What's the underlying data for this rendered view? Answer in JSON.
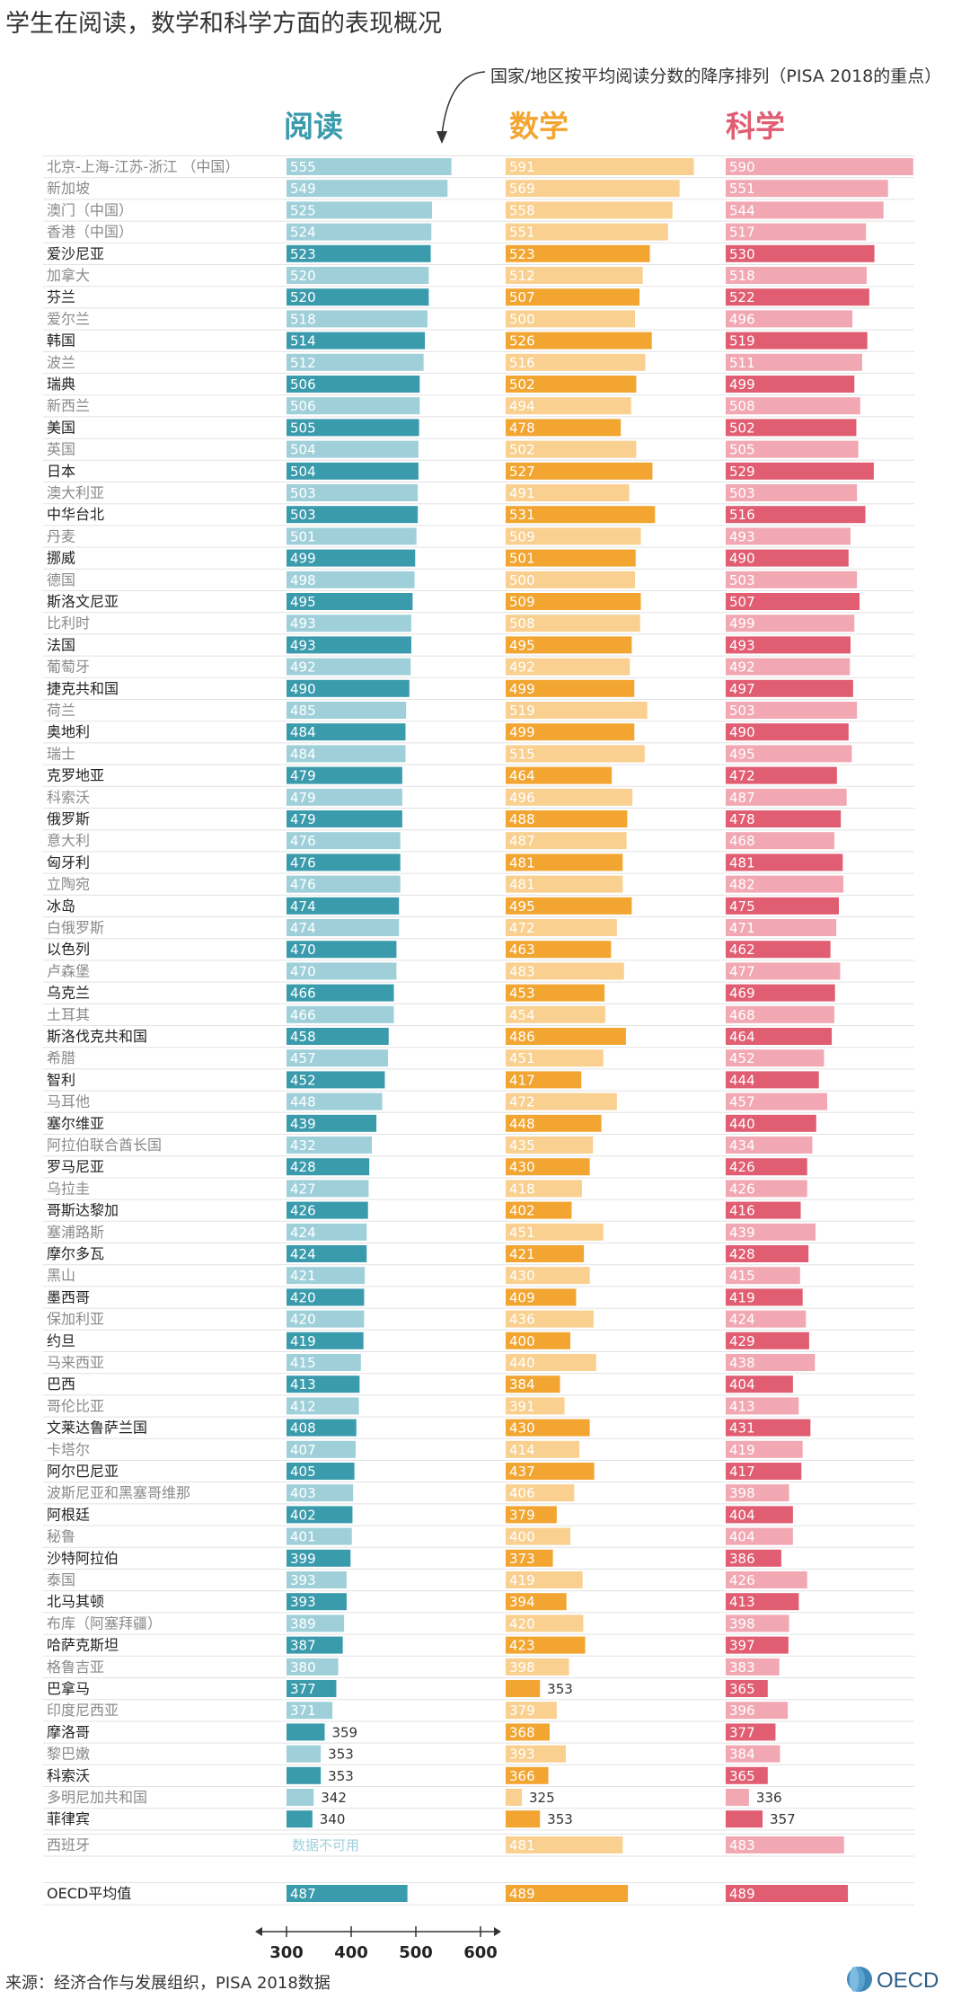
{
  "title": "学生在阅读，数学和科学方面的表现概况",
  "note": "国家/地区按平均阅读分数的降序排列（PISA 2018的重点）",
  "source": "来源：经济合作与发展组织，PISA 2018数据",
  "logo_text": "OECD",
  "chart_data": {
    "type": "bar",
    "orientation": "horizontal",
    "axis_ticks": [
      300,
      400,
      500,
      600
    ],
    "xlim": [
      300,
      600
    ],
    "grid": false,
    "series": [
      {
        "name": "阅读",
        "color": "#3a9bad",
        "light_color": "#9fd0da"
      },
      {
        "name": "数学",
        "color": "#f2a531",
        "light_color": "#f9d08f"
      },
      {
        "name": "科学",
        "color": "#e05d72",
        "light_color": "#f2a8b3"
      }
    ],
    "rows": [
      {
        "country": "北京-上海-江苏-浙江 （中国）",
        "values": [
          555,
          591,
          590
        ],
        "dim": true
      },
      {
        "country": "新加坡",
        "values": [
          549,
          569,
          551
        ],
        "dim": true
      },
      {
        "country": "澳门（中国）",
        "values": [
          525,
          558,
          544
        ],
        "dim": true
      },
      {
        "country": "香港（中国）",
        "values": [
          524,
          551,
          517
        ],
        "dim": true
      },
      {
        "country": "爱沙尼亚",
        "values": [
          523,
          523,
          530
        ],
        "dim": false
      },
      {
        "country": "加拿大",
        "values": [
          520,
          512,
          518
        ],
        "dim": true
      },
      {
        "country": "芬兰",
        "values": [
          520,
          507,
          522
        ],
        "dim": false
      },
      {
        "country": "爱尔兰",
        "values": [
          518,
          500,
          496
        ],
        "dim": true
      },
      {
        "country": "韩国",
        "values": [
          514,
          526,
          519
        ],
        "dim": false
      },
      {
        "country": "波兰",
        "values": [
          512,
          516,
          511
        ],
        "dim": true
      },
      {
        "country": "瑞典",
        "values": [
          506,
          502,
          499
        ],
        "dim": false
      },
      {
        "country": "新西兰",
        "values": [
          506,
          494,
          508
        ],
        "dim": true
      },
      {
        "country": "美国",
        "values": [
          505,
          478,
          502
        ],
        "dim": false
      },
      {
        "country": "英国",
        "values": [
          504,
          502,
          505
        ],
        "dim": true
      },
      {
        "country": "日本",
        "values": [
          504,
          527,
          529
        ],
        "dim": false
      },
      {
        "country": "澳大利亚",
        "values": [
          503,
          491,
          503
        ],
        "dim": true
      },
      {
        "country": "中华台北",
        "values": [
          503,
          531,
          516
        ],
        "dim": false
      },
      {
        "country": "丹麦",
        "values": [
          501,
          509,
          493
        ],
        "dim": true
      },
      {
        "country": "挪威",
        "values": [
          499,
          501,
          490
        ],
        "dim": false
      },
      {
        "country": "德国",
        "values": [
          498,
          500,
          503
        ],
        "dim": true
      },
      {
        "country": "斯洛文尼亚",
        "values": [
          495,
          509,
          507
        ],
        "dim": false
      },
      {
        "country": "比利时",
        "values": [
          493,
          508,
          499
        ],
        "dim": true
      },
      {
        "country": "法国",
        "values": [
          493,
          495,
          493
        ],
        "dim": false
      },
      {
        "country": "葡萄牙",
        "values": [
          492,
          492,
          492
        ],
        "dim": true
      },
      {
        "country": "捷克共和国",
        "values": [
          490,
          499,
          497
        ],
        "dim": false
      },
      {
        "country": "荷兰",
        "values": [
          485,
          519,
          503
        ],
        "dim": true
      },
      {
        "country": "奥地利",
        "values": [
          484,
          499,
          490
        ],
        "dim": false
      },
      {
        "country": "瑞士",
        "values": [
          484,
          515,
          495
        ],
        "dim": true
      },
      {
        "country": "克罗地亚",
        "values": [
          479,
          464,
          472
        ],
        "dim": false
      },
      {
        "country": "科索沃",
        "values": [
          479,
          496,
          487
        ],
        "dim": true
      },
      {
        "country": "俄罗斯",
        "values": [
          479,
          488,
          478
        ],
        "dim": false
      },
      {
        "country": "意大利",
        "values": [
          476,
          487,
          468
        ],
        "dim": true
      },
      {
        "country": "匈牙利",
        "values": [
          476,
          481,
          481
        ],
        "dim": false
      },
      {
        "country": "立陶宛",
        "values": [
          476,
          481,
          482
        ],
        "dim": true
      },
      {
        "country": "冰岛",
        "values": [
          474,
          495,
          475
        ],
        "dim": false
      },
      {
        "country": "白俄罗斯",
        "values": [
          474,
          472,
          471
        ],
        "dim": true
      },
      {
        "country": "以色列",
        "values": [
          470,
          463,
          462
        ],
        "dim": false
      },
      {
        "country": "卢森堡",
        "values": [
          470,
          483,
          477
        ],
        "dim": true
      },
      {
        "country": "乌克兰",
        "values": [
          466,
          453,
          469
        ],
        "dim": false
      },
      {
        "country": "土耳其",
        "values": [
          466,
          454,
          468
        ],
        "dim": true
      },
      {
        "country": "斯洛伐克共和国",
        "values": [
          458,
          486,
          464
        ],
        "dim": false
      },
      {
        "country": "希腊",
        "values": [
          457,
          451,
          452
        ],
        "dim": true
      },
      {
        "country": "智利",
        "values": [
          452,
          417,
          444
        ],
        "dim": false
      },
      {
        "country": "马耳他",
        "values": [
          448,
          472,
          457
        ],
        "dim": true
      },
      {
        "country": "塞尔维亚",
        "values": [
          439,
          448,
          440
        ],
        "dim": false
      },
      {
        "country": "阿拉伯联合酋长国",
        "values": [
          432,
          435,
          434
        ],
        "dim": true
      },
      {
        "country": "罗马尼亚",
        "values": [
          428,
          430,
          426
        ],
        "dim": false
      },
      {
        "country": "乌拉圭",
        "values": [
          427,
          418,
          426
        ],
        "dim": true
      },
      {
        "country": "哥斯达黎加",
        "values": [
          426,
          402,
          416
        ],
        "dim": false
      },
      {
        "country": "塞浦路斯",
        "values": [
          424,
          451,
          439
        ],
        "dim": true
      },
      {
        "country": "摩尔多瓦",
        "values": [
          424,
          421,
          428
        ],
        "dim": false
      },
      {
        "country": "黑山",
        "values": [
          421,
          430,
          415
        ],
        "dim": true
      },
      {
        "country": "墨西哥",
        "values": [
          420,
          409,
          419
        ],
        "dim": false
      },
      {
        "country": "保加利亚",
        "values": [
          420,
          436,
          424
        ],
        "dim": true
      },
      {
        "country": "约旦",
        "values": [
          419,
          400,
          429
        ],
        "dim": false
      },
      {
        "country": "马来西亚",
        "values": [
          415,
          440,
          438
        ],
        "dim": true
      },
      {
        "country": "巴西",
        "values": [
          413,
          384,
          404
        ],
        "dim": false
      },
      {
        "country": "哥伦比亚",
        "values": [
          412,
          391,
          413
        ],
        "dim": true
      },
      {
        "country": "文莱达鲁萨兰国",
        "values": [
          408,
          430,
          431
        ],
        "dim": false
      },
      {
        "country": "卡塔尔",
        "values": [
          407,
          414,
          419
        ],
        "dim": true
      },
      {
        "country": "阿尔巴尼亚",
        "values": [
          405,
          437,
          417
        ],
        "dim": false
      },
      {
        "country": "波斯尼亚和黑塞哥维那",
        "values": [
          403,
          406,
          398
        ],
        "dim": true
      },
      {
        "country": "阿根廷",
        "values": [
          402,
          379,
          404
        ],
        "dim": false
      },
      {
        "country": "秘鲁",
        "values": [
          401,
          400,
          404
        ],
        "dim": true
      },
      {
        "country": "沙特阿拉伯",
        "values": [
          399,
          373,
          386
        ],
        "dim": false
      },
      {
        "country": "泰国",
        "values": [
          393,
          419,
          426
        ],
        "dim": true
      },
      {
        "country": "北马其顿",
        "values": [
          393,
          394,
          413
        ],
        "dim": false
      },
      {
        "country": "布库（阿塞拜疆）",
        "values": [
          389,
          420,
          398
        ],
        "dim": true
      },
      {
        "country": "哈萨克斯坦",
        "values": [
          387,
          423,
          397
        ],
        "dim": false
      },
      {
        "country": "格鲁吉亚",
        "values": [
          380,
          398,
          383
        ],
        "dim": true
      },
      {
        "country": "巴拿马",
        "values": [
          377,
          353,
          365
        ],
        "dim": false
      },
      {
        "country": "印度尼西亚",
        "values": [
          371,
          379,
          396
        ],
        "dim": true
      },
      {
        "country": "摩洛哥",
        "values": [
          359,
          368,
          377
        ],
        "dim": false
      },
      {
        "country": "黎巴嫩",
        "values": [
          353,
          393,
          384
        ],
        "dim": true
      },
      {
        "country": "科索沃",
        "values": [
          353,
          366,
          365
        ],
        "dim": false
      },
      {
        "country": "多明尼加共和国",
        "values": [
          342,
          325,
          336
        ],
        "dim": true
      },
      {
        "country": "菲律宾",
        "values": [
          340,
          353,
          357
        ],
        "dim": false
      }
    ],
    "spain": {
      "country": "西班牙",
      "values": [
        null,
        481,
        483
      ],
      "missing_label": "数据不可用"
    },
    "oecd_average": {
      "country": "OECD平均值",
      "values": [
        487,
        489,
        489
      ]
    }
  }
}
